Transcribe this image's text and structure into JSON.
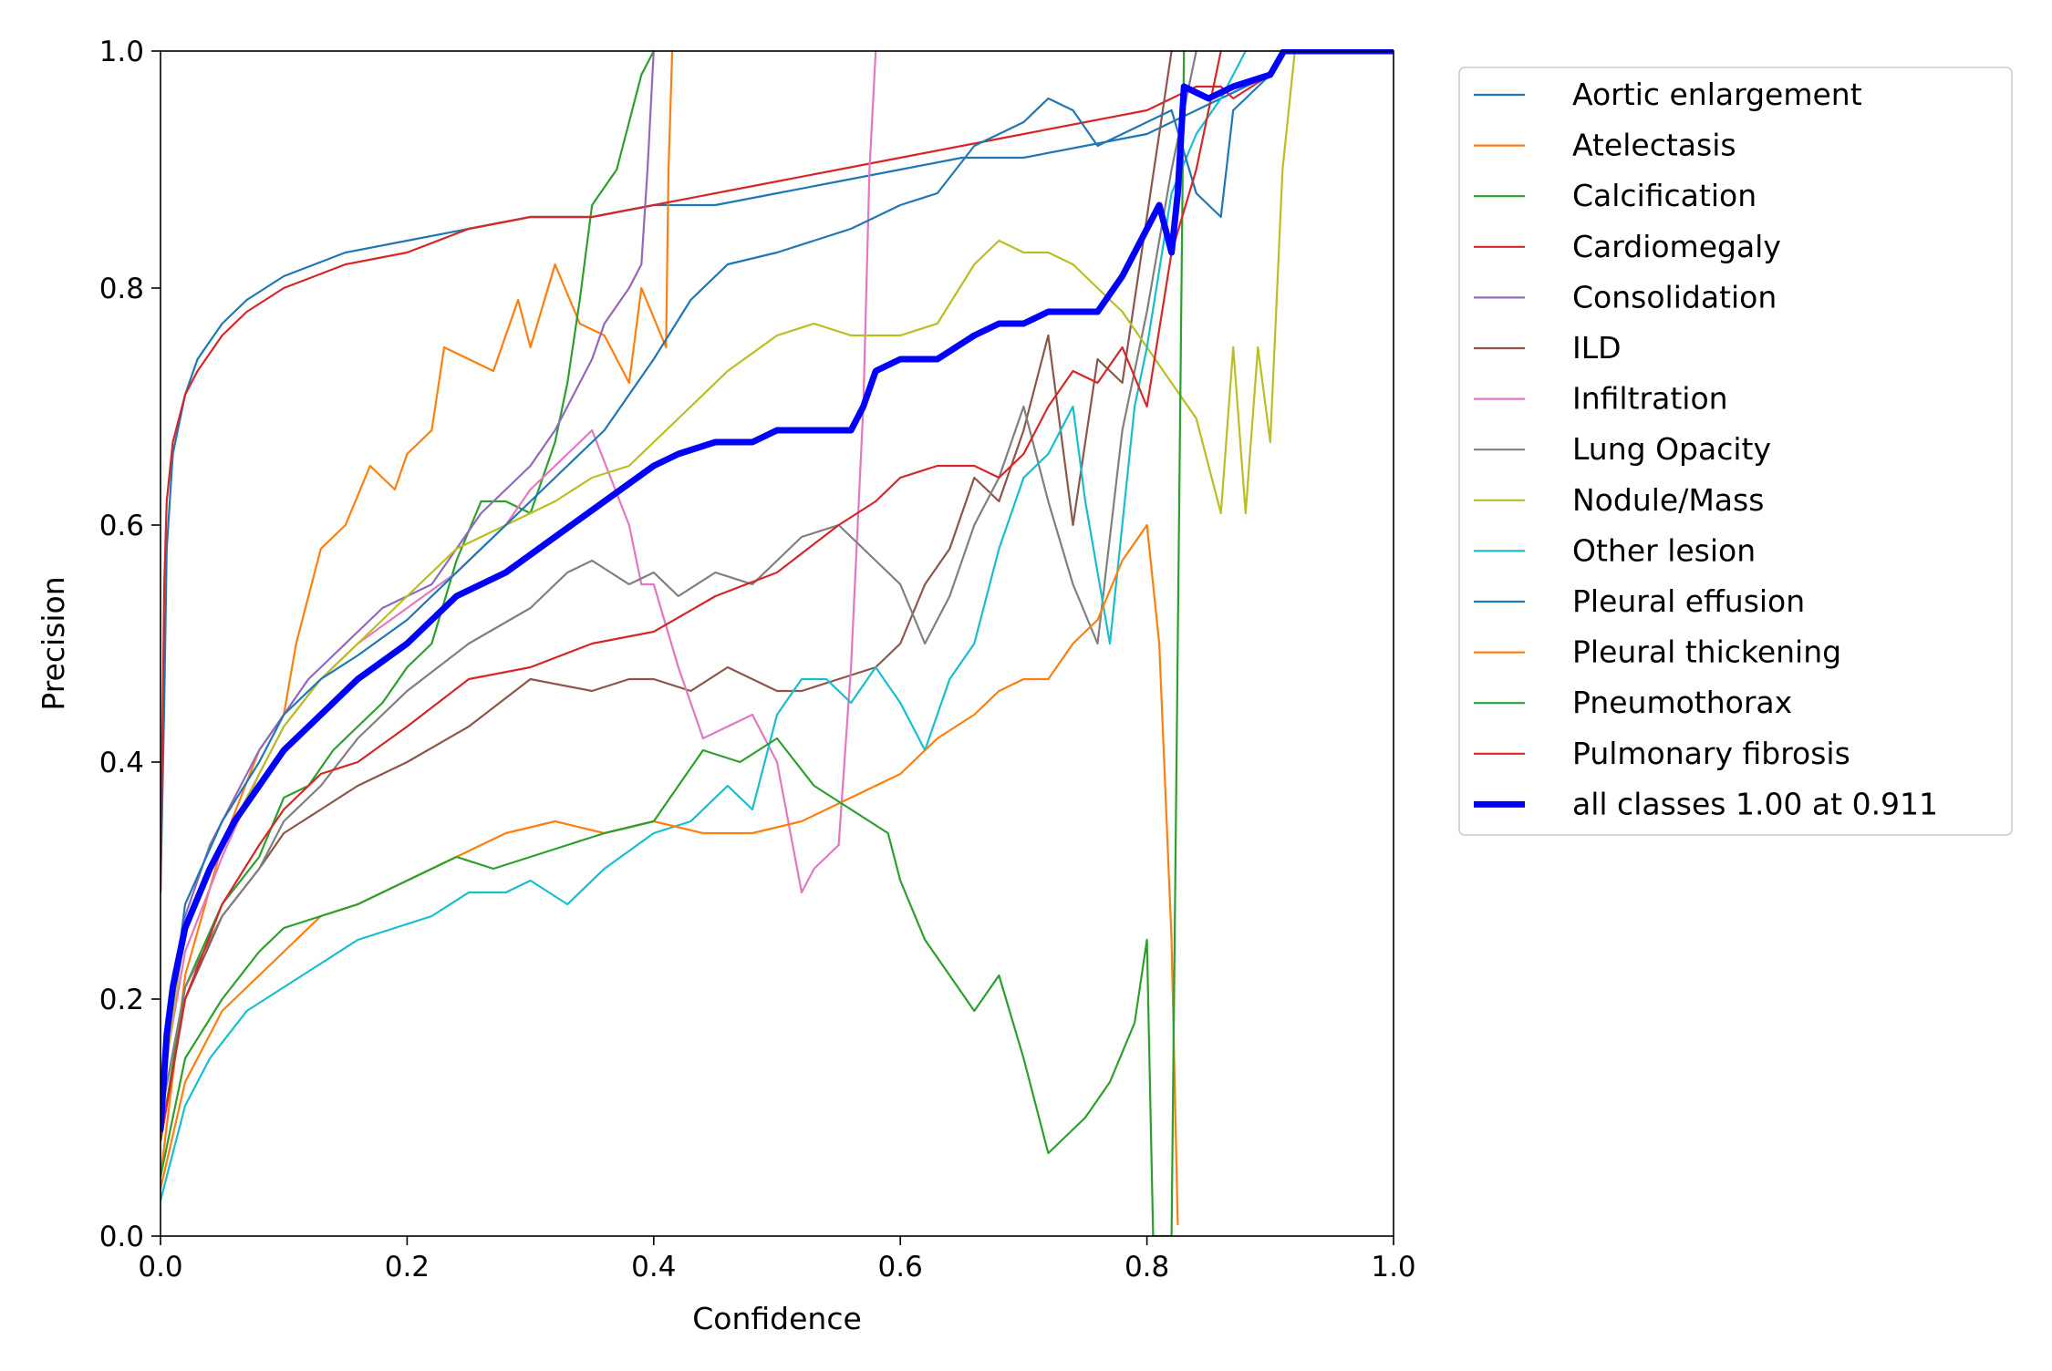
{
  "chart_data": {
    "type": "line",
    "title": "",
    "xlabel": "Confidence",
    "ylabel": "Precision",
    "xlim": [
      0,
      1
    ],
    "ylim": [
      0,
      1
    ],
    "x_ticks": [
      "0.0",
      "0.2",
      "0.4",
      "0.6",
      "0.8",
      "1.0"
    ],
    "y_ticks": [
      "0.0",
      "0.2",
      "0.4",
      "0.6",
      "0.8",
      "1.0"
    ],
    "grid": false,
    "legend_position": "outside-top-right",
    "series": [
      {
        "name": "Aortic enlargement",
        "color": "#1f77b4",
        "width": 1,
        "x": [
          0.0,
          0.003,
          0.005,
          0.01,
          0.02,
          0.03,
          0.05,
          0.07,
          0.1,
          0.15,
          0.2,
          0.25,
          0.3,
          0.35,
          0.4,
          0.45,
          0.5,
          0.55,
          0.6,
          0.65,
          0.7,
          0.75,
          0.8,
          0.82,
          0.84,
          0.86,
          0.88,
          0.9,
          0.91,
          1.0
        ],
        "y": [
          0.29,
          0.45,
          0.58,
          0.66,
          0.71,
          0.74,
          0.77,
          0.79,
          0.81,
          0.83,
          0.84,
          0.85,
          0.86,
          0.86,
          0.87,
          0.87,
          0.88,
          0.89,
          0.9,
          0.91,
          0.91,
          0.92,
          0.93,
          0.94,
          0.95,
          0.96,
          0.97,
          0.98,
          1.0,
          1.0
        ]
      },
      {
        "name": "Atelectasis",
        "color": "#ff7f0e",
        "width": 1,
        "x": [
          0.0,
          0.02,
          0.05,
          0.08,
          0.1,
          0.11,
          0.13,
          0.15,
          0.17,
          0.19,
          0.2,
          0.22,
          0.23,
          0.27,
          0.29,
          0.3,
          0.32,
          0.34,
          0.36,
          0.38,
          0.39,
          0.41,
          0.412,
          0.415
        ],
        "y": [
          0.05,
          0.22,
          0.33,
          0.41,
          0.44,
          0.5,
          0.58,
          0.6,
          0.65,
          0.63,
          0.66,
          0.68,
          0.75,
          0.73,
          0.79,
          0.75,
          0.82,
          0.77,
          0.76,
          0.72,
          0.8,
          0.75,
          0.9,
          1.0
        ]
      },
      {
        "name": "Calcification",
        "color": "#2ca02c",
        "width": 1,
        "x": [
          0.0,
          0.02,
          0.05,
          0.08,
          0.1,
          0.12,
          0.14,
          0.16,
          0.18,
          0.2,
          0.22,
          0.24,
          0.26,
          0.28,
          0.3,
          0.32,
          0.33,
          0.34,
          0.35,
          0.37,
          0.38,
          0.39,
          0.4
        ],
        "y": [
          0.08,
          0.21,
          0.28,
          0.32,
          0.37,
          0.38,
          0.41,
          0.43,
          0.45,
          0.48,
          0.5,
          0.57,
          0.62,
          0.62,
          0.61,
          0.67,
          0.72,
          0.79,
          0.87,
          0.9,
          0.94,
          0.98,
          1.0
        ]
      },
      {
        "name": "Cardiomegaly",
        "color": "#d62728",
        "width": 1,
        "x": [
          0.0,
          0.003,
          0.005,
          0.01,
          0.02,
          0.03,
          0.05,
          0.07,
          0.1,
          0.15,
          0.2,
          0.25,
          0.3,
          0.35,
          0.4,
          0.45,
          0.5,
          0.55,
          0.6,
          0.65,
          0.7,
          0.75,
          0.8,
          0.82,
          0.84,
          0.86,
          0.87,
          0.9,
          0.91,
          1.0
        ],
        "y": [
          0.29,
          0.55,
          0.62,
          0.67,
          0.71,
          0.73,
          0.76,
          0.78,
          0.8,
          0.82,
          0.83,
          0.85,
          0.86,
          0.86,
          0.87,
          0.88,
          0.89,
          0.9,
          0.91,
          0.92,
          0.93,
          0.94,
          0.95,
          0.96,
          0.97,
          0.97,
          0.96,
          0.98,
          1.0,
          1.0
        ]
      },
      {
        "name": "Consolidation",
        "color": "#9467bd",
        "width": 1,
        "x": [
          0.0,
          0.01,
          0.02,
          0.04,
          0.06,
          0.08,
          0.1,
          0.12,
          0.14,
          0.16,
          0.18,
          0.2,
          0.22,
          0.24,
          0.26,
          0.28,
          0.3,
          0.32,
          0.34,
          0.35,
          0.36,
          0.38,
          0.39,
          0.395,
          0.4
        ],
        "y": [
          0.1,
          0.22,
          0.27,
          0.33,
          0.37,
          0.41,
          0.44,
          0.47,
          0.49,
          0.51,
          0.53,
          0.54,
          0.55,
          0.58,
          0.61,
          0.63,
          0.65,
          0.68,
          0.72,
          0.74,
          0.77,
          0.8,
          0.82,
          0.9,
          1.0
        ]
      },
      {
        "name": "ILD",
        "color": "#8c564b",
        "width": 1,
        "x": [
          0.0,
          0.02,
          0.05,
          0.08,
          0.1,
          0.13,
          0.16,
          0.2,
          0.25,
          0.3,
          0.35,
          0.38,
          0.4,
          0.43,
          0.46,
          0.5,
          0.52,
          0.55,
          0.58,
          0.6,
          0.62,
          0.64,
          0.66,
          0.68,
          0.7,
          0.72,
          0.74,
          0.76,
          0.78,
          0.8,
          0.82
        ],
        "y": [
          0.08,
          0.2,
          0.27,
          0.31,
          0.34,
          0.36,
          0.38,
          0.4,
          0.43,
          0.47,
          0.46,
          0.47,
          0.47,
          0.46,
          0.48,
          0.46,
          0.46,
          0.47,
          0.48,
          0.5,
          0.55,
          0.58,
          0.64,
          0.62,
          0.68,
          0.76,
          0.6,
          0.74,
          0.72,
          0.86,
          1.0
        ]
      },
      {
        "name": "Infiltration",
        "color": "#e377c2",
        "width": 1,
        "x": [
          0.0,
          0.02,
          0.05,
          0.08,
          0.1,
          0.13,
          0.16,
          0.2,
          0.24,
          0.28,
          0.3,
          0.33,
          0.35,
          0.38,
          0.39,
          0.4,
          0.42,
          0.44,
          0.46,
          0.48,
          0.5,
          0.52,
          0.53,
          0.55,
          0.56,
          0.57,
          0.575,
          0.58
        ],
        "y": [
          0.12,
          0.24,
          0.32,
          0.39,
          0.43,
          0.47,
          0.5,
          0.53,
          0.56,
          0.6,
          0.63,
          0.66,
          0.68,
          0.6,
          0.55,
          0.55,
          0.48,
          0.42,
          0.43,
          0.44,
          0.4,
          0.29,
          0.31,
          0.33,
          0.48,
          0.7,
          0.9,
          1.0
        ]
      },
      {
        "name": "Lung Opacity",
        "color": "#7f7f7f",
        "width": 1,
        "x": [
          0.0,
          0.02,
          0.05,
          0.08,
          0.1,
          0.13,
          0.16,
          0.2,
          0.25,
          0.3,
          0.33,
          0.35,
          0.38,
          0.4,
          0.42,
          0.45,
          0.48,
          0.5,
          0.52,
          0.55,
          0.58,
          0.6,
          0.62,
          0.64,
          0.66,
          0.68,
          0.7,
          0.72,
          0.74,
          0.76,
          0.78,
          0.8,
          0.82,
          0.84
        ],
        "y": [
          0.1,
          0.21,
          0.27,
          0.31,
          0.35,
          0.38,
          0.42,
          0.46,
          0.5,
          0.53,
          0.56,
          0.57,
          0.55,
          0.56,
          0.54,
          0.56,
          0.55,
          0.57,
          0.59,
          0.6,
          0.57,
          0.55,
          0.5,
          0.54,
          0.6,
          0.64,
          0.7,
          0.62,
          0.55,
          0.5,
          0.68,
          0.78,
          0.9,
          1.0
        ]
      },
      {
        "name": "Nodule/Mass",
        "color": "#bcbd22",
        "width": 1,
        "x": [
          0.0,
          0.02,
          0.05,
          0.08,
          0.1,
          0.13,
          0.16,
          0.2,
          0.24,
          0.28,
          0.32,
          0.35,
          0.38,
          0.4,
          0.43,
          0.46,
          0.5,
          0.53,
          0.56,
          0.6,
          0.63,
          0.66,
          0.68,
          0.7,
          0.72,
          0.74,
          0.76,
          0.78,
          0.8,
          0.82,
          0.84,
          0.86,
          0.87,
          0.88,
          0.89,
          0.9,
          0.91,
          0.92
        ],
        "y": [
          0.11,
          0.26,
          0.33,
          0.39,
          0.43,
          0.47,
          0.5,
          0.54,
          0.58,
          0.6,
          0.62,
          0.64,
          0.65,
          0.67,
          0.7,
          0.73,
          0.76,
          0.77,
          0.76,
          0.76,
          0.77,
          0.82,
          0.84,
          0.83,
          0.83,
          0.82,
          0.8,
          0.78,
          0.75,
          0.72,
          0.69,
          0.61,
          0.75,
          0.61,
          0.75,
          0.67,
          0.9,
          1.0
        ]
      },
      {
        "name": "Other lesion",
        "color": "#17becf",
        "width": 1,
        "x": [
          0.0,
          0.02,
          0.04,
          0.07,
          0.1,
          0.13,
          0.16,
          0.19,
          0.22,
          0.25,
          0.28,
          0.3,
          0.33,
          0.36,
          0.4,
          0.43,
          0.46,
          0.48,
          0.5,
          0.52,
          0.54,
          0.56,
          0.58,
          0.6,
          0.62,
          0.64,
          0.66,
          0.68,
          0.7,
          0.72,
          0.74,
          0.75,
          0.77,
          0.79,
          0.8,
          0.82,
          0.84,
          0.86,
          0.88
        ],
        "y": [
          0.03,
          0.11,
          0.15,
          0.19,
          0.21,
          0.23,
          0.25,
          0.26,
          0.27,
          0.29,
          0.29,
          0.3,
          0.28,
          0.31,
          0.34,
          0.35,
          0.38,
          0.36,
          0.44,
          0.47,
          0.47,
          0.45,
          0.48,
          0.45,
          0.41,
          0.47,
          0.5,
          0.58,
          0.64,
          0.66,
          0.7,
          0.62,
          0.5,
          0.7,
          0.75,
          0.88,
          0.93,
          0.96,
          1.0
        ]
      },
      {
        "name": "Pleural effusion",
        "color": "#1f77b4",
        "width": 1,
        "x": [
          0.0,
          0.02,
          0.05,
          0.08,
          0.1,
          0.13,
          0.16,
          0.2,
          0.24,
          0.28,
          0.32,
          0.36,
          0.4,
          0.43,
          0.46,
          0.5,
          0.53,
          0.56,
          0.6,
          0.63,
          0.66,
          0.68,
          0.7,
          0.72,
          0.74,
          0.76,
          0.78,
          0.8,
          0.82,
          0.84,
          0.86,
          0.87,
          0.88,
          0.9,
          0.91,
          1.0
        ],
        "y": [
          0.12,
          0.28,
          0.35,
          0.4,
          0.44,
          0.47,
          0.49,
          0.52,
          0.56,
          0.6,
          0.64,
          0.68,
          0.74,
          0.79,
          0.82,
          0.83,
          0.84,
          0.85,
          0.87,
          0.88,
          0.92,
          0.93,
          0.94,
          0.96,
          0.95,
          0.92,
          0.93,
          0.94,
          0.95,
          0.88,
          0.86,
          0.95,
          0.96,
          0.98,
          1.0,
          1.0
        ]
      },
      {
        "name": "Pleural thickening",
        "color": "#ff7f0e",
        "width": 1,
        "x": [
          0.0,
          0.02,
          0.05,
          0.08,
          0.1,
          0.13,
          0.16,
          0.2,
          0.24,
          0.28,
          0.32,
          0.36,
          0.4,
          0.44,
          0.48,
          0.52,
          0.56,
          0.6,
          0.63,
          0.66,
          0.68,
          0.7,
          0.72,
          0.74,
          0.76,
          0.78,
          0.8,
          0.81,
          0.82,
          0.825
        ],
        "y": [
          0.04,
          0.13,
          0.19,
          0.22,
          0.24,
          0.27,
          0.28,
          0.3,
          0.32,
          0.34,
          0.35,
          0.34,
          0.35,
          0.34,
          0.34,
          0.35,
          0.37,
          0.39,
          0.42,
          0.44,
          0.46,
          0.47,
          0.47,
          0.5,
          0.52,
          0.57,
          0.6,
          0.5,
          0.25,
          0.01
        ]
      },
      {
        "name": "Pneumothorax",
        "color": "#2ca02c",
        "width": 1,
        "x": [
          0.0,
          0.02,
          0.05,
          0.08,
          0.1,
          0.13,
          0.16,
          0.2,
          0.24,
          0.27,
          0.3,
          0.33,
          0.36,
          0.4,
          0.42,
          0.44,
          0.47,
          0.5,
          0.53,
          0.56,
          0.59,
          0.6,
          0.62,
          0.64,
          0.66,
          0.68,
          0.7,
          0.72,
          0.73,
          0.75,
          0.77,
          0.79,
          0.8,
          0.805,
          0.81,
          0.82,
          0.825,
          0.83
        ],
        "y": [
          0.05,
          0.15,
          0.2,
          0.24,
          0.26,
          0.27,
          0.28,
          0.3,
          0.32,
          0.31,
          0.32,
          0.33,
          0.34,
          0.35,
          0.38,
          0.41,
          0.4,
          0.42,
          0.38,
          0.36,
          0.34,
          0.3,
          0.25,
          0.22,
          0.19,
          0.22,
          0.15,
          0.07,
          0.08,
          0.1,
          0.13,
          0.18,
          0.25,
          0.0,
          0.0,
          0.0,
          0.5,
          1.0
        ]
      },
      {
        "name": "Pulmonary fibrosis",
        "color": "#d62728",
        "width": 1,
        "x": [
          0.0,
          0.02,
          0.05,
          0.08,
          0.1,
          0.13,
          0.16,
          0.2,
          0.25,
          0.3,
          0.35,
          0.4,
          0.45,
          0.5,
          0.55,
          0.58,
          0.6,
          0.63,
          0.66,
          0.68,
          0.7,
          0.72,
          0.74,
          0.76,
          0.78,
          0.8,
          0.82,
          0.84,
          0.86
        ],
        "y": [
          0.08,
          0.2,
          0.28,
          0.33,
          0.36,
          0.39,
          0.4,
          0.43,
          0.47,
          0.48,
          0.5,
          0.51,
          0.54,
          0.56,
          0.6,
          0.62,
          0.64,
          0.65,
          0.65,
          0.64,
          0.66,
          0.7,
          0.73,
          0.72,
          0.75,
          0.7,
          0.83,
          0.9,
          1.0
        ]
      },
      {
        "name": "all classes 1.00 at 0.911",
        "color": "#0000ff",
        "width": 4,
        "x": [
          0.0,
          0.005,
          0.01,
          0.02,
          0.04,
          0.06,
          0.08,
          0.1,
          0.13,
          0.16,
          0.2,
          0.24,
          0.28,
          0.32,
          0.36,
          0.4,
          0.42,
          0.45,
          0.48,
          0.5,
          0.53,
          0.56,
          0.57,
          0.58,
          0.6,
          0.63,
          0.66,
          0.68,
          0.7,
          0.72,
          0.74,
          0.76,
          0.78,
          0.8,
          0.81,
          0.82,
          0.825,
          0.83,
          0.85,
          0.87,
          0.9,
          0.911,
          1.0
        ],
        "y": [
          0.09,
          0.17,
          0.21,
          0.26,
          0.31,
          0.35,
          0.38,
          0.41,
          0.44,
          0.47,
          0.5,
          0.54,
          0.56,
          0.59,
          0.62,
          0.65,
          0.66,
          0.67,
          0.67,
          0.68,
          0.68,
          0.68,
          0.7,
          0.73,
          0.74,
          0.74,
          0.76,
          0.77,
          0.77,
          0.78,
          0.78,
          0.78,
          0.81,
          0.85,
          0.87,
          0.83,
          0.88,
          0.97,
          0.96,
          0.97,
          0.98,
          1.0,
          1.0
        ]
      }
    ]
  }
}
